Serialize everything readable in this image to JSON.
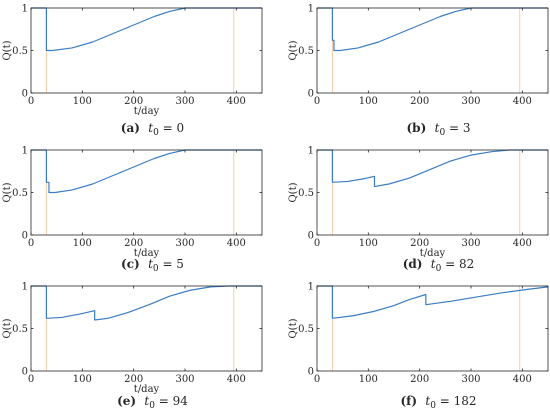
{
  "chart_data": [
    {
      "type": "line",
      "panel": "a",
      "caption": {
        "tag": "(a)",
        "var": "t",
        "sub": "0",
        "eq": "= 0"
      },
      "xlabel": "t/day",
      "ylabel": "Q(t)",
      "xlim": [
        0,
        450
      ],
      "ylim": [
        0,
        1
      ],
      "xticks": [
        0,
        100,
        200,
        300,
        400
      ],
      "yticks": [
        0,
        0.5,
        1
      ],
      "grid": false,
      "line_color": "#3b7dc4",
      "marker_color": "#f2c9a0",
      "markers_x": [
        30,
        395
      ],
      "series": [
        {
          "values": [
            [
              0,
              1
            ],
            [
              30,
              1
            ],
            [
              30,
              0.5
            ],
            [
              42,
              0.5
            ],
            [
              80,
              0.53
            ],
            [
              120,
              0.6
            ],
            [
              160,
              0.7
            ],
            [
              200,
              0.8
            ],
            [
              240,
              0.9
            ],
            [
              270,
              0.96
            ],
            [
              300,
              1
            ],
            [
              450,
              1
            ]
          ]
        }
      ]
    },
    {
      "type": "line",
      "panel": "b",
      "caption": {
        "tag": "(b)",
        "var": "t",
        "sub": "0",
        "eq": "= 3"
      },
      "xlabel": "",
      "ylabel": "Q(t)",
      "xlim": [
        0,
        450
      ],
      "ylim": [
        0,
        1
      ],
      "xticks": [
        0,
        100,
        200,
        300,
        400
      ],
      "yticks": [
        0,
        0.5,
        1
      ],
      "grid": false,
      "line_color": "#3b7dc4",
      "marker_color": "#f2c9a0",
      "markers_x": [
        30,
        395
      ],
      "series": [
        {
          "values": [
            [
              0,
              1
            ],
            [
              30,
              1
            ],
            [
              30,
              0.62
            ],
            [
              33,
              0.62
            ],
            [
              33,
              0.5
            ],
            [
              45,
              0.5
            ],
            [
              80,
              0.53
            ],
            [
              120,
              0.6
            ],
            [
              160,
              0.7
            ],
            [
              200,
              0.8
            ],
            [
              240,
              0.9
            ],
            [
              270,
              0.96
            ],
            [
              300,
              1
            ],
            [
              450,
              1
            ]
          ]
        }
      ]
    },
    {
      "type": "line",
      "panel": "c",
      "caption": {
        "tag": "(c)",
        "var": "t",
        "sub": "0",
        "eq": "= 5"
      },
      "xlabel": "t/day",
      "ylabel": "Q(t)",
      "xlim": [
        0,
        450
      ],
      "ylim": [
        0,
        1
      ],
      "xticks": [
        0,
        100,
        200,
        300,
        400
      ],
      "yticks": [
        0,
        0.5,
        1
      ],
      "grid": false,
      "line_color": "#3b7dc4",
      "marker_color": "#f2c9a0",
      "markers_x": [
        30,
        395
      ],
      "series": [
        {
          "values": [
            [
              0,
              1
            ],
            [
              30,
              1
            ],
            [
              30,
              0.62
            ],
            [
              35,
              0.62
            ],
            [
              35,
              0.5
            ],
            [
              47,
              0.5
            ],
            [
              80,
              0.53
            ],
            [
              120,
              0.6
            ],
            [
              160,
              0.7
            ],
            [
              200,
              0.8
            ],
            [
              240,
              0.9
            ],
            [
              270,
              0.96
            ],
            [
              300,
              1
            ],
            [
              450,
              1
            ]
          ]
        }
      ]
    },
    {
      "type": "line",
      "panel": "d",
      "caption": {
        "tag": "(d)",
        "var": "t",
        "sub": "0",
        "eq": "= 82"
      },
      "xlabel": "t/day",
      "ylabel": "Q(t)",
      "xlim": [
        0,
        450
      ],
      "ylim": [
        0,
        1
      ],
      "xticks": [
        0,
        100,
        200,
        300,
        400
      ],
      "yticks": [
        0,
        0.5,
        1
      ],
      "grid": false,
      "line_color": "#3b7dc4",
      "marker_color": "#f2c9a0",
      "markers_x": [
        30,
        395
      ],
      "series": [
        {
          "values": [
            [
              0,
              1
            ],
            [
              30,
              1
            ],
            [
              30,
              0.62
            ],
            [
              60,
              0.63
            ],
            [
              90,
              0.66
            ],
            [
              112,
              0.69
            ],
            [
              112,
              0.57
            ],
            [
              140,
              0.6
            ],
            [
              180,
              0.67
            ],
            [
              220,
              0.77
            ],
            [
              260,
              0.87
            ],
            [
              300,
              0.94
            ],
            [
              340,
              0.98
            ],
            [
              375,
              1
            ],
            [
              450,
              1
            ]
          ]
        }
      ]
    },
    {
      "type": "line",
      "panel": "e",
      "caption": {
        "tag": "(e)",
        "var": "t",
        "sub": "0",
        "eq": "= 94"
      },
      "xlabel": "t/day",
      "ylabel": "Q(t)",
      "xlim": [
        0,
        450
      ],
      "ylim": [
        0,
        1
      ],
      "xticks": [
        0,
        100,
        200,
        300,
        400
      ],
      "yticks": [
        0,
        0.5,
        1
      ],
      "grid": false,
      "line_color": "#3b7dc4",
      "marker_color": "#f2c9a0",
      "markers_x": [
        30,
        395
      ],
      "series": [
        {
          "values": [
            [
              0,
              1
            ],
            [
              30,
              1
            ],
            [
              30,
              0.62
            ],
            [
              60,
              0.63
            ],
            [
              95,
              0.67
            ],
            [
              124,
              0.71
            ],
            [
              124,
              0.6
            ],
            [
              150,
              0.62
            ],
            [
              190,
              0.69
            ],
            [
              230,
              0.78
            ],
            [
              270,
              0.88
            ],
            [
              310,
              0.95
            ],
            [
              350,
              0.99
            ],
            [
              385,
              1
            ],
            [
              450,
              1
            ]
          ]
        }
      ]
    },
    {
      "type": "line",
      "panel": "f",
      "caption": {
        "tag": "(f)",
        "var": "t",
        "sub": "0",
        "eq": "= 182"
      },
      "xlabel": "",
      "ylabel": "Q(t)",
      "xlim": [
        0,
        450
      ],
      "ylim": [
        0,
        1
      ],
      "xticks": [
        0,
        100,
        200,
        300,
        400
      ],
      "yticks": [
        0,
        0.5,
        1
      ],
      "grid": false,
      "line_color": "#3b7dc4",
      "marker_color": "#f2c9a0",
      "markers_x": [
        30,
        395
      ],
      "series": [
        {
          "values": [
            [
              0,
              1
            ],
            [
              30,
              1
            ],
            [
              30,
              0.62
            ],
            [
              70,
              0.65
            ],
            [
              110,
              0.7
            ],
            [
              150,
              0.77
            ],
            [
              180,
              0.84
            ],
            [
              212,
              0.9
            ],
            [
              212,
              0.78
            ],
            [
              260,
              0.82
            ],
            [
              310,
              0.87
            ],
            [
              360,
              0.92
            ],
            [
              410,
              0.96
            ],
            [
              450,
              0.99
            ]
          ]
        }
      ]
    }
  ]
}
